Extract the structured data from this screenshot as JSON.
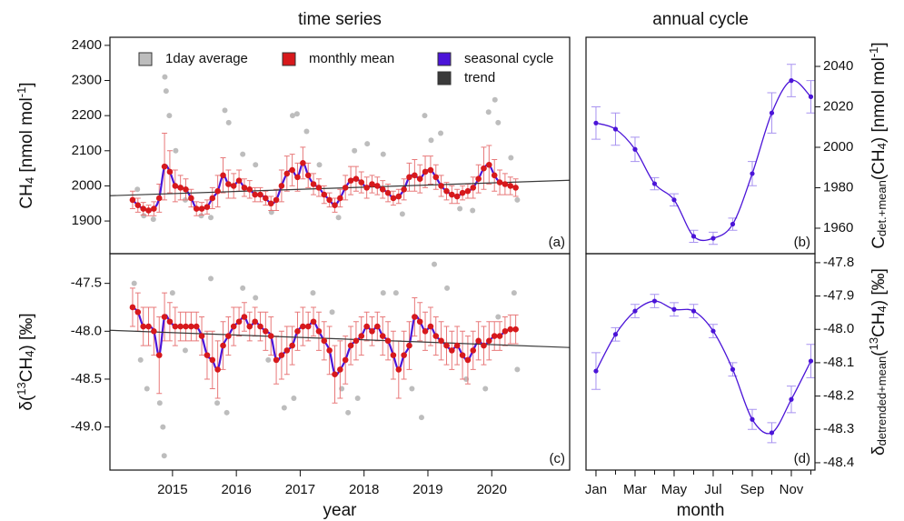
{
  "chart_data": [
    {
      "type": "scatter",
      "title": "time series",
      "panel_label": "(a)",
      "yaxis_side": "left",
      "ylabel": [
        {
          "text": "CH"
        },
        {
          "text": "4",
          "sub": true
        },
        {
          "text": " [nmol mol"
        },
        {
          "text": "-1",
          "sup": true
        },
        {
          "text": "]"
        }
      ],
      "xlim": [
        2014.02,
        2021.22
      ],
      "ylim": [
        1807,
        2423
      ],
      "yticks": [
        1900,
        2000,
        2100,
        2200,
        2300,
        2400
      ],
      "legend": "top",
      "series": [
        {
          "name": "1day average",
          "color": "#bdbdbd",
          "x": [
            2014.45,
            2014.55,
            2014.7,
            2014.88,
            2014.9,
            2014.95,
            2015.05,
            2015.2,
            2015.45,
            2015.6,
            2015.82,
            2015.88,
            2016.1,
            2016.3,
            2016.55,
            2016.88,
            2016.95,
            2017.1,
            2017.3,
            2017.6,
            2017.85,
            2018.05,
            2018.3,
            2018.6,
            2018.95,
            2019.05,
            2019.2,
            2019.5,
            2019.7,
            2019.95,
            2020.05,
            2020.1,
            2020.3,
            2020.4
          ],
          "values": [
            1990,
            1915,
            1905,
            2310,
            2270,
            2200,
            2100,
            1960,
            1915,
            1910,
            2215,
            2180,
            2090,
            2060,
            1925,
            2200,
            2205,
            2155,
            2060,
            1910,
            2100,
            2120,
            2090,
            1920,
            2200,
            2130,
            2150,
            1935,
            1930,
            2210,
            2245,
            2180,
            2080,
            1960
          ]
        },
        {
          "name": "monthly mean",
          "color": "#d7191c",
          "x": [
            2014.375,
            2014.458,
            2014.542,
            2014.625,
            2014.708,
            2014.792,
            2014.875,
            2014.958,
            2015.042,
            2015.125,
            2015.208,
            2015.292,
            2015.375,
            2015.458,
            2015.542,
            2015.625,
            2015.708,
            2015.792,
            2015.875,
            2015.958,
            2016.042,
            2016.125,
            2016.208,
            2016.292,
            2016.375,
            2016.458,
            2016.542,
            2016.625,
            2016.708,
            2016.792,
            2016.875,
            2016.958,
            2017.042,
            2017.125,
            2017.208,
            2017.292,
            2017.375,
            2017.458,
            2017.542,
            2017.625,
            2017.708,
            2017.792,
            2017.875,
            2017.958,
            2018.042,
            2018.125,
            2018.208,
            2018.292,
            2018.375,
            2018.458,
            2018.542,
            2018.625,
            2018.708,
            2018.792,
            2018.875,
            2018.958,
            2019.042,
            2019.125,
            2019.208,
            2019.292,
            2019.375,
            2019.458,
            2019.542,
            2019.625,
            2019.708,
            2019.792,
            2019.875,
            2019.958,
            2020.042,
            2020.125,
            2020.208,
            2020.292,
            2020.375
          ],
          "values": [
            1960,
            1945,
            1935,
            1930,
            1935,
            1965,
            2055,
            2040,
            2000,
            1995,
            1990,
            1965,
            1935,
            1935,
            1940,
            1965,
            1985,
            2030,
            2005,
            2000,
            2015,
            1995,
            1990,
            1975,
            1975,
            1965,
            1950,
            1960,
            2000,
            2035,
            2045,
            2025,
            2065,
            2030,
            2005,
            1995,
            1975,
            1960,
            1945,
            1965,
            1995,
            2015,
            2020,
            2010,
            1995,
            2005,
            2000,
            1990,
            1980,
            1965,
            1970,
            1990,
            2025,
            2030,
            2020,
            2040,
            2045,
            2025,
            2000,
            1985,
            1975,
            1970,
            1980,
            1985,
            1995,
            2020,
            2050,
            2060,
            2030,
            2010,
            2005,
            2000,
            1995
          ],
          "errors": [
            25,
            20,
            18,
            15,
            20,
            40,
            95,
            60,
            45,
            35,
            30,
            25,
            20,
            18,
            20,
            30,
            45,
            50,
            40,
            35,
            30,
            25,
            25,
            20,
            20,
            20,
            20,
            30,
            45,
            50,
            45,
            40,
            45,
            35,
            30,
            25,
            25,
            20,
            20,
            25,
            35,
            40,
            35,
            30,
            30,
            25,
            25,
            25,
            25,
            20,
            20,
            30,
            40,
            45,
            40,
            45,
            40,
            35,
            30,
            25,
            25,
            20,
            20,
            20,
            30,
            40,
            60,
            55,
            45,
            35,
            30,
            25,
            25
          ]
        },
        {
          "name": "seasonal cycle",
          "color": "#4b14d8"
        },
        {
          "name": "trend",
          "color": "#3a3a3a",
          "x": [
            2014.02,
            2021.22
          ],
          "values": [
            1972,
            2016
          ]
        }
      ]
    },
    {
      "type": "line",
      "title": "annual cycle",
      "panel_label": "(b)",
      "yaxis_side": "right",
      "ylabel": [
        {
          "text": "C"
        },
        {
          "text": "det.+mean",
          "sub": true
        },
        {
          "text": "(CH"
        },
        {
          "text": "4",
          "sub": true
        },
        {
          "text": ") [nmol mol"
        },
        {
          "text": "-1",
          "sup": true
        },
        {
          "text": "]"
        }
      ],
      "xlim": [
        0.49,
        12.21
      ],
      "ylim": [
        1947.4,
        2054.4
      ],
      "yticks": [
        1960,
        1980,
        2000,
        2020,
        2040
      ],
      "series": [
        {
          "color": "#4b14d8",
          "errcolor": "#a893f0",
          "x": [
            1,
            2,
            3,
            4,
            5,
            6,
            7,
            8,
            9,
            10,
            11,
            12
          ],
          "values": [
            2012,
            2009,
            1999,
            1982,
            1974,
            1956,
            1955,
            1962,
            1987,
            2017,
            2033,
            2025
          ],
          "errors": [
            8,
            8,
            6,
            3,
            3,
            3,
            3,
            3,
            6,
            10,
            8,
            8
          ]
        }
      ]
    },
    {
      "type": "scatter",
      "xlabel": "year",
      "panel_label": "(c)",
      "yaxis_side": "left",
      "ylabel": [
        {
          "text": "δ("
        },
        {
          "text": "13",
          "sup": true
        },
        {
          "text": "CH"
        },
        {
          "text": "4",
          "sub": true
        },
        {
          "text": ") [‰]"
        }
      ],
      "xlim": [
        2014.02,
        2021.22
      ],
      "ylim": [
        -49.45,
        -47.19
      ],
      "xticks": [
        2015,
        2016,
        2017,
        2018,
        2019,
        2020
      ],
      "yticks": [
        -47.5,
        {
          "value": -48,
          "label": "-48.0"
        },
        -48.5,
        {
          "value": -49,
          "label": "-49.0"
        }
      ],
      "series": [
        {
          "color": "#bdbdbd",
          "x": [
            2014.4,
            2014.5,
            2014.6,
            2014.8,
            2014.85,
            2014.87,
            2015.0,
            2015.2,
            2015.6,
            2015.7,
            2015.85,
            2016.1,
            2016.3,
            2016.5,
            2016.75,
            2016.9,
            2017.2,
            2017.5,
            2017.65,
            2017.75,
            2017.9,
            2018.3,
            2018.5,
            2018.75,
            2018.9,
            2019.1,
            2019.3,
            2019.6,
            2019.9,
            2020.1,
            2020.35,
            2020.4
          ],
          "values": [
            -47.5,
            -48.3,
            -48.6,
            -48.75,
            -49.0,
            -49.3,
            -47.6,
            -48.2,
            -47.45,
            -48.75,
            -48.85,
            -47.55,
            -47.65,
            -48.3,
            -48.8,
            -48.7,
            -47.6,
            -47.8,
            -48.6,
            -48.85,
            -48.7,
            -47.6,
            -47.6,
            -48.6,
            -48.9,
            -47.3,
            -47.55,
            -48.5,
            -48.6,
            -47.85,
            -47.6,
            -48.4
          ]
        },
        {
          "color": "#d7191c",
          "x": [
            2014.375,
            2014.458,
            2014.542,
            2014.625,
            2014.708,
            2014.792,
            2014.875,
            2014.958,
            2015.042,
            2015.125,
            2015.208,
            2015.292,
            2015.375,
            2015.458,
            2015.542,
            2015.625,
            2015.708,
            2015.792,
            2015.875,
            2015.958,
            2016.042,
            2016.125,
            2016.208,
            2016.292,
            2016.375,
            2016.458,
            2016.542,
            2016.625,
            2016.708,
            2016.792,
            2016.875,
            2016.958,
            2017.042,
            2017.125,
            2017.208,
            2017.292,
            2017.375,
            2017.458,
            2017.542,
            2017.625,
            2017.708,
            2017.792,
            2017.875,
            2017.958,
            2018.042,
            2018.125,
            2018.208,
            2018.292,
            2018.375,
            2018.458,
            2018.542,
            2018.625,
            2018.708,
            2018.792,
            2018.875,
            2018.958,
            2019.042,
            2019.125,
            2019.208,
            2019.292,
            2019.375,
            2019.458,
            2019.542,
            2019.625,
            2019.708,
            2019.792,
            2019.875,
            2019.958,
            2020.042,
            2020.125,
            2020.208,
            2020.292,
            2020.375
          ],
          "values": [
            -47.75,
            -47.8,
            -47.95,
            -47.95,
            -48.0,
            -48.25,
            -47.85,
            -47.9,
            -47.95,
            -47.95,
            -47.95,
            -47.95,
            -47.95,
            -48.05,
            -48.25,
            -48.3,
            -48.4,
            -48.15,
            -48.05,
            -47.95,
            -47.9,
            -47.85,
            -47.95,
            -47.9,
            -47.95,
            -48.0,
            -48.05,
            -48.3,
            -48.25,
            -48.2,
            -48.15,
            -48.0,
            -47.95,
            -47.95,
            -47.9,
            -48.0,
            -48.1,
            -48.2,
            -48.45,
            -48.4,
            -48.3,
            -48.15,
            -48.1,
            -48.05,
            -47.95,
            -48.0,
            -47.95,
            -48.05,
            -48.1,
            -48.25,
            -48.4,
            -48.25,
            -48.15,
            -47.85,
            -47.9,
            -48.0,
            -47.95,
            -48.05,
            -48.1,
            -48.15,
            -48.2,
            -48.15,
            -48.25,
            -48.3,
            -48.2,
            -48.1,
            -48.15,
            -48.1,
            -48.05,
            -48.05,
            -48.0,
            -47.98,
            -47.98
          ],
          "errors": [
            0.2,
            0.2,
            0.2,
            0.2,
            0.25,
            0.4,
            0.25,
            0.2,
            0.2,
            0.15,
            0.15,
            0.15,
            0.15,
            0.2,
            0.25,
            0.3,
            0.3,
            0.25,
            0.2,
            0.2,
            0.15,
            0.15,
            0.15,
            0.15,
            0.15,
            0.2,
            0.2,
            0.25,
            0.25,
            0.25,
            0.2,
            0.2,
            0.2,
            0.15,
            0.15,
            0.2,
            0.2,
            0.25,
            0.3,
            0.3,
            0.25,
            0.2,
            0.2,
            0.2,
            0.15,
            0.15,
            0.15,
            0.2,
            0.2,
            0.25,
            0.3,
            0.25,
            0.25,
            0.2,
            0.2,
            0.2,
            0.2,
            0.2,
            0.2,
            0.2,
            0.2,
            0.2,
            0.25,
            0.25,
            0.2,
            0.2,
            0.2,
            0.2,
            0.15,
            0.15,
            0.15,
            0.15,
            0.15
          ]
        },
        {
          "color": "#4b14d8"
        },
        {
          "color": "#3a3a3a",
          "x": [
            2014.02,
            2021.22
          ],
          "values": [
            -47.99,
            -48.17
          ]
        }
      ]
    },
    {
      "type": "line",
      "xlabel": "month",
      "panel_label": "(d)",
      "yaxis_side": "right",
      "ylabel": [
        {
          "text": "δ"
        },
        {
          "text": "detrended+mean",
          "sub": true
        },
        {
          "text": "("
        },
        {
          "text": "13",
          "sup": true
        },
        {
          "text": "CH"
        },
        {
          "text": "4",
          "sub": true
        },
        {
          "text": ") [‰]"
        }
      ],
      "xlim": [
        0.49,
        12.21
      ],
      "ylim": [
        -48.422,
        -47.773
      ],
      "xticks": [
        {
          "value": 1,
          "label": "Jan"
        },
        {
          "value": 3,
          "label": "Mar"
        },
        {
          "value": 5,
          "label": "May"
        },
        {
          "value": 7,
          "label": "Jul"
        },
        {
          "value": 9,
          "label": "Sep"
        },
        {
          "value": 11,
          "label": "Nov"
        }
      ],
      "xminor": [
        1,
        2,
        3,
        4,
        5,
        6,
        7,
        8,
        9,
        10,
        11,
        12
      ],
      "yticks": [
        -47.8,
        -47.9,
        {
          "value": -48,
          "label": "-48.0"
        },
        -48.1,
        -48.2,
        -48.3,
        -48.4
      ],
      "series": [
        {
          "color": "#4b14d8",
          "errcolor": "#a893f0",
          "x": [
            1,
            2,
            3,
            4,
            5,
            6,
            7,
            8,
            9,
            10,
            11,
            12
          ],
          "values": [
            -48.125,
            -48.015,
            -47.945,
            -47.915,
            -47.94,
            -47.945,
            -48.005,
            -48.12,
            -48.27,
            -48.31,
            -48.21,
            -48.095
          ],
          "errors": [
            0.055,
            0.02,
            0.02,
            0.02,
            0.02,
            0.02,
            0.02,
            0.02,
            0.03,
            0.03,
            0.04,
            0.05
          ]
        }
      ]
    }
  ]
}
